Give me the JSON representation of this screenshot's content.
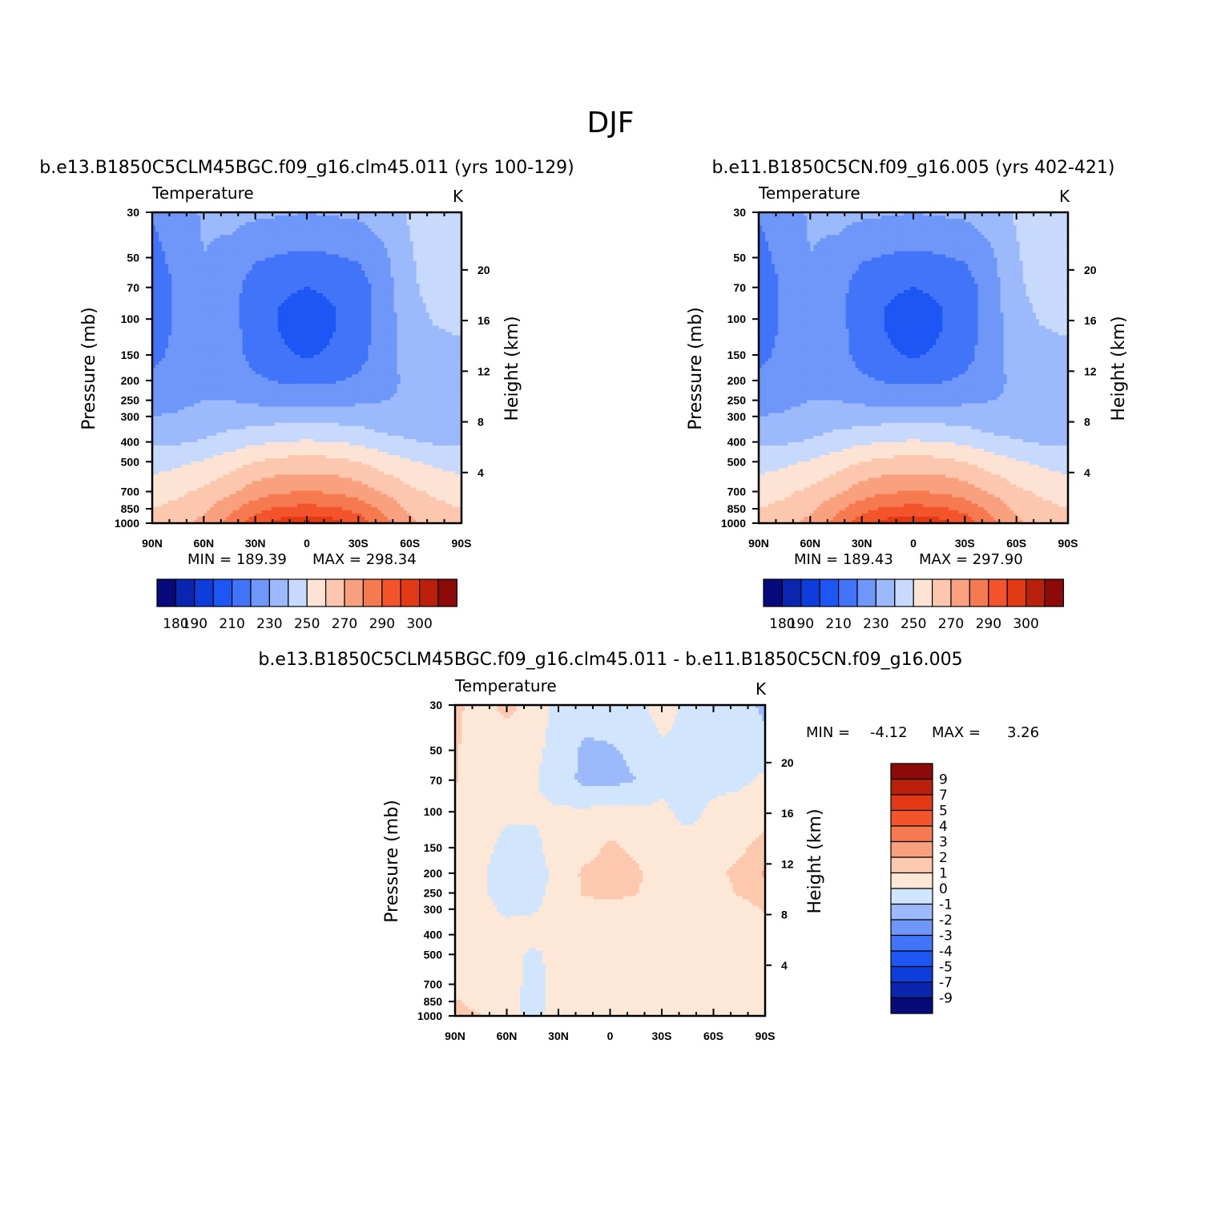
{
  "figure": {
    "title": "DJF"
  },
  "palettes": {
    "abs": [
      "#060a7a",
      "#0a26b0",
      "#0d3edc",
      "#1e56f5",
      "#4274fa",
      "#6f97fa",
      "#9cb9fc",
      "#c7dafe",
      "#fde3d4",
      "#fcc7ae",
      "#f9a17f",
      "#f67a50",
      "#f3542b",
      "#e23a14",
      "#b9200b",
      "#8c0a08"
    ],
    "diff": [
      "#060a7a",
      "#0a26b0",
      "#0d3edc",
      "#1e56f5",
      "#4274fa",
      "#6f97fa",
      "#9cb9fc",
      "#d1e5fd",
      "#fde8d8",
      "#fcc8ae",
      "#f9a17f",
      "#f67a50",
      "#f3542b",
      "#e23a14",
      "#b9200b",
      "#8c0a08"
    ]
  },
  "panels": [
    {
      "case_title": "b.e13.B1850C5CLM45BGC.f09_g16.clm45.011 (yrs 100-129)",
      "var_label": "Temperature",
      "units": "K",
      "ylabel": "Pressure (mb)",
      "y2label": "Height (km)",
      "min_text": "MIN = 189.39",
      "max_text": "MAX = 298.34"
    },
    {
      "case_title": "b.e11.B1850C5CN.f09_g16.005 (yrs 402-421)",
      "var_label": "Temperature",
      "units": "K",
      "ylabel": "Pressure (mb)",
      "y2label": "Height (km)",
      "min_text": "MIN = 189.43",
      "max_text": "MAX = 297.90"
    },
    {
      "case_title": "b.e13.B1850C5CLM45BGC.f09_g16.clm45.011 - b.e11.B1850C5CN.f09_g16.005",
      "var_label": "Temperature",
      "units": "K",
      "ylabel": "Pressure (mb)",
      "y2label": "Height (km)",
      "min_label": "MIN =",
      "min_value": "-4.12",
      "max_label": "MAX =",
      "max_value": "3.26"
    }
  ],
  "colorbars": {
    "abs_labels": [
      "180",
      "190",
      "210",
      "230",
      "250",
      "270",
      "290",
      "300"
    ],
    "diff_labels": [
      "9",
      "7",
      "5",
      "4",
      "3",
      "2",
      "1",
      "0",
      "-1",
      "-2",
      "-3",
      "-4",
      "-5",
      "-7",
      "-9"
    ]
  },
  "chart_data": [
    {
      "type": "heatmap",
      "title": "b.e13.B1850C5CLM45BGC.f09_g16.clm45.011 (yrs 100-129)",
      "variable": "Temperature",
      "units": "K",
      "xlabel": "",
      "ylabel": "Pressure (mb)",
      "y2label": "Height (km)",
      "x_ticks": [
        "90N",
        "60N",
        "30N",
        "0",
        "30S",
        "60S",
        "90S"
      ],
      "y_ticks": [
        30,
        50,
        70,
        100,
        150,
        200,
        250,
        300,
        400,
        500,
        700,
        850,
        1000
      ],
      "y2_ticks": [
        20,
        16,
        12,
        8,
        4
      ],
      "y_scale": "log",
      "levels": [
        180,
        185,
        190,
        200,
        210,
        220,
        230,
        240,
        250,
        260,
        270,
        280,
        290,
        295,
        300
      ],
      "min": 189.39,
      "max": 298.34,
      "x": [
        90,
        75,
        60,
        45,
        30,
        15,
        0,
        -15,
        -30,
        -45,
        -60,
        -75,
        -90
      ],
      "p": [
        30,
        50,
        70,
        100,
        150,
        200,
        250,
        300,
        400,
        500,
        700,
        850,
        1000
      ],
      "values": [
        [
          211,
          216,
          221,
          223,
          222,
          221,
          220,
          221,
          222,
          225,
          231,
          236,
          238
        ],
        [
          206,
          214,
          220,
          217,
          211,
          209,
          208,
          209,
          211,
          218,
          229,
          235,
          237
        ],
        [
          202,
          212,
          219,
          214,
          205,
          201,
          200,
          201,
          205,
          215,
          228,
          234,
          236
        ],
        [
          203,
          212,
          219,
          214,
          204,
          199,
          197,
          199,
          204,
          215,
          226,
          231,
          233
        ],
        [
          207,
          213,
          219,
          215,
          206,
          201,
          199,
          201,
          206,
          216,
          224,
          226,
          227
        ],
        [
          212,
          216,
          219,
          217,
          212,
          209,
          208,
          209,
          212,
          217,
          222,
          222,
          222
        ],
        [
          216,
          218,
          220,
          220,
          218,
          217,
          217,
          217,
          218,
          220,
          221,
          221,
          221
        ],
        [
          220,
          221,
          223,
          224,
          225,
          226,
          227,
          226,
          225,
          222,
          221,
          220,
          220
        ],
        [
          228,
          229,
          231,
          235,
          238,
          240,
          241,
          240,
          238,
          234,
          231,
          229,
          228
        ],
        [
          236,
          238,
          241,
          245,
          250,
          253,
          254,
          253,
          250,
          245,
          241,
          238,
          236
        ],
        [
          245,
          248,
          252,
          258,
          265,
          269,
          270,
          269,
          265,
          259,
          252,
          248,
          245
        ],
        [
          250,
          253,
          258,
          267,
          276,
          282,
          283,
          282,
          277,
          268,
          258,
          253,
          250
        ],
        [
          253,
          257,
          263,
          274,
          286,
          294,
          297,
          294,
          286,
          274,
          262,
          255,
          252
        ]
      ]
    },
    {
      "type": "heatmap",
      "title": "b.e11.B1850C5CN.f09_g16.005 (yrs 402-421)",
      "variable": "Temperature",
      "units": "K",
      "xlabel": "",
      "ylabel": "Pressure (mb)",
      "y2label": "Height (km)",
      "x_ticks": [
        "90N",
        "60N",
        "30N",
        "0",
        "30S",
        "60S",
        "90S"
      ],
      "y_ticks": [
        30,
        50,
        70,
        100,
        150,
        200,
        250,
        300,
        400,
        500,
        700,
        850,
        1000
      ],
      "y2_ticks": [
        20,
        16,
        12,
        8,
        4
      ],
      "y_scale": "log",
      "levels": [
        180,
        185,
        190,
        200,
        210,
        220,
        230,
        240,
        250,
        260,
        270,
        280,
        290,
        295,
        300
      ],
      "min": 189.43,
      "max": 297.9,
      "x": [
        90,
        75,
        60,
        45,
        30,
        15,
        0,
        -15,
        -30,
        -45,
        -60,
        -75,
        -90
      ],
      "p": [
        30,
        50,
        70,
        100,
        150,
        200,
        250,
        300,
        400,
        500,
        700,
        850,
        1000
      ],
      "values": [
        [
          211,
          216,
          221,
          223,
          222,
          221,
          220,
          221,
          222,
          225,
          231,
          236,
          238
        ],
        [
          206,
          214,
          220,
          217,
          211,
          209,
          208,
          209,
          211,
          218,
          229,
          235,
          237
        ],
        [
          202,
          212,
          219,
          214,
          205,
          201,
          200,
          201,
          205,
          215,
          228,
          234,
          236
        ],
        [
          203,
          212,
          219,
          214,
          204,
          199,
          197,
          199,
          204,
          215,
          226,
          231,
          233
        ],
        [
          207,
          213,
          219,
          215,
          206,
          201,
          199,
          201,
          206,
          216,
          224,
          226,
          227
        ],
        [
          212,
          216,
          219,
          217,
          212,
          209,
          208,
          209,
          212,
          217,
          222,
          222,
          222
        ],
        [
          216,
          218,
          220,
          220,
          218,
          217,
          217,
          217,
          218,
          220,
          221,
          221,
          221
        ],
        [
          220,
          221,
          223,
          224,
          225,
          226,
          227,
          226,
          225,
          222,
          221,
          220,
          220
        ],
        [
          228,
          229,
          231,
          235,
          238,
          240,
          241,
          240,
          238,
          234,
          231,
          229,
          228
        ],
        [
          236,
          238,
          241,
          245,
          250,
          253,
          254,
          253,
          250,
          245,
          241,
          238,
          236
        ],
        [
          245,
          248,
          252,
          258,
          265,
          269,
          270,
          269,
          265,
          259,
          252,
          248,
          245
        ],
        [
          250,
          253,
          258,
          267,
          276,
          282,
          283,
          282,
          277,
          268,
          258,
          253,
          250
        ],
        [
          253,
          257,
          263,
          274,
          286,
          294,
          296,
          294,
          286,
          274,
          262,
          255,
          252
        ]
      ]
    },
    {
      "type": "heatmap",
      "title": "b.e13.B1850C5CLM45BGC.f09_g16.clm45.011 - b.e11.B1850C5CN.f09_g16.005",
      "variable": "Temperature",
      "units": "K",
      "xlabel": "",
      "ylabel": "Pressure (mb)",
      "y2label": "Height (km)",
      "x_ticks": [
        "90N",
        "60N",
        "30N",
        "0",
        "30S",
        "60S",
        "90S"
      ],
      "y_ticks": [
        30,
        50,
        70,
        100,
        150,
        200,
        250,
        300,
        400,
        500,
        700,
        850,
        1000
      ],
      "y2_ticks": [
        20,
        16,
        12,
        8,
        4
      ],
      "y_scale": "log",
      "levels": [
        -9,
        -7,
        -5,
        -4,
        -3,
        -2,
        -1,
        0,
        1,
        2,
        3,
        4,
        5,
        7,
        9
      ],
      "min": -4.12,
      "max": 3.26,
      "x": [
        90,
        75,
        60,
        45,
        30,
        15,
        0,
        -15,
        -30,
        -45,
        -60,
        -75,
        -90
      ],
      "p": [
        30,
        50,
        70,
        100,
        150,
        200,
        250,
        300,
        400,
        500,
        700,
        850,
        1000
      ],
      "values": [
        [
          1.2,
          0.6,
          1.3,
          0.6,
          -0.3,
          -0.5,
          -0.5,
          -0.4,
          0.5,
          -0.3,
          -0.4,
          -0.5,
          -1.3
        ],
        [
          1.1,
          0.5,
          0.4,
          0.2,
          -0.3,
          -1.2,
          -1.1,
          -0.8,
          -0.2,
          -0.2,
          -0.3,
          -0.4,
          -0.5
        ],
        [
          1.1,
          0.5,
          0.4,
          0.1,
          -0.4,
          -1.3,
          -1.3,
          -1.0,
          -0.3,
          -0.2,
          -0.3,
          -0.2,
          0.2
        ],
        [
          0.6,
          0.4,
          0.2,
          0.1,
          0.1,
          0.2,
          0.3,
          0.2,
          0.2,
          -0.3,
          0.2,
          0.4,
          0.6
        ],
        [
          0.5,
          0.3,
          -0.3,
          -0.2,
          0.3,
          0.6,
          1.2,
          0.8,
          0.4,
          0.4,
          0.6,
          0.8,
          1.4
        ],
        [
          0.3,
          0.1,
          -0.4,
          -0.3,
          0.2,
          1.2,
          1.3,
          1.2,
          0.4,
          0.3,
          0.8,
          1.2,
          2.2
        ],
        [
          0.2,
          0.1,
          -0.3,
          -0.2,
          0.2,
          1.1,
          1.2,
          1.1,
          0.3,
          0.3,
          0.6,
          1.1,
          1.4
        ],
        [
          0.3,
          0.3,
          -0.2,
          -0.1,
          0.3,
          0.6,
          0.8,
          0.5,
          0.3,
          0.3,
          0.4,
          0.6,
          1.1
        ],
        [
          0.3,
          0.4,
          0.4,
          0.4,
          0.3,
          0.3,
          0.2,
          0.2,
          0.3,
          0.3,
          0.4,
          0.5,
          0.6
        ],
        [
          0.3,
          0.4,
          0.4,
          -0.2,
          0.3,
          0.3,
          0.3,
          0.3,
          0.3,
          0.3,
          0.3,
          0.4,
          0.9
        ],
        [
          0.5,
          0.4,
          0.4,
          -0.3,
          0.3,
          0.3,
          0.2,
          0.2,
          0.3,
          0.3,
          0.3,
          0.4,
          0.5
        ],
        [
          1.1,
          0.6,
          0.3,
          -0.3,
          0.3,
          0.2,
          0.2,
          0.3,
          0.3,
          0.3,
          0.3,
          0.4,
          0.6
        ],
        [
          1.3,
          1.1,
          0.3,
          -0.2,
          0.3,
          0.3,
          0.3,
          0.3,
          0.3,
          0.3,
          0.3,
          0.5,
          0.8
        ]
      ]
    }
  ]
}
